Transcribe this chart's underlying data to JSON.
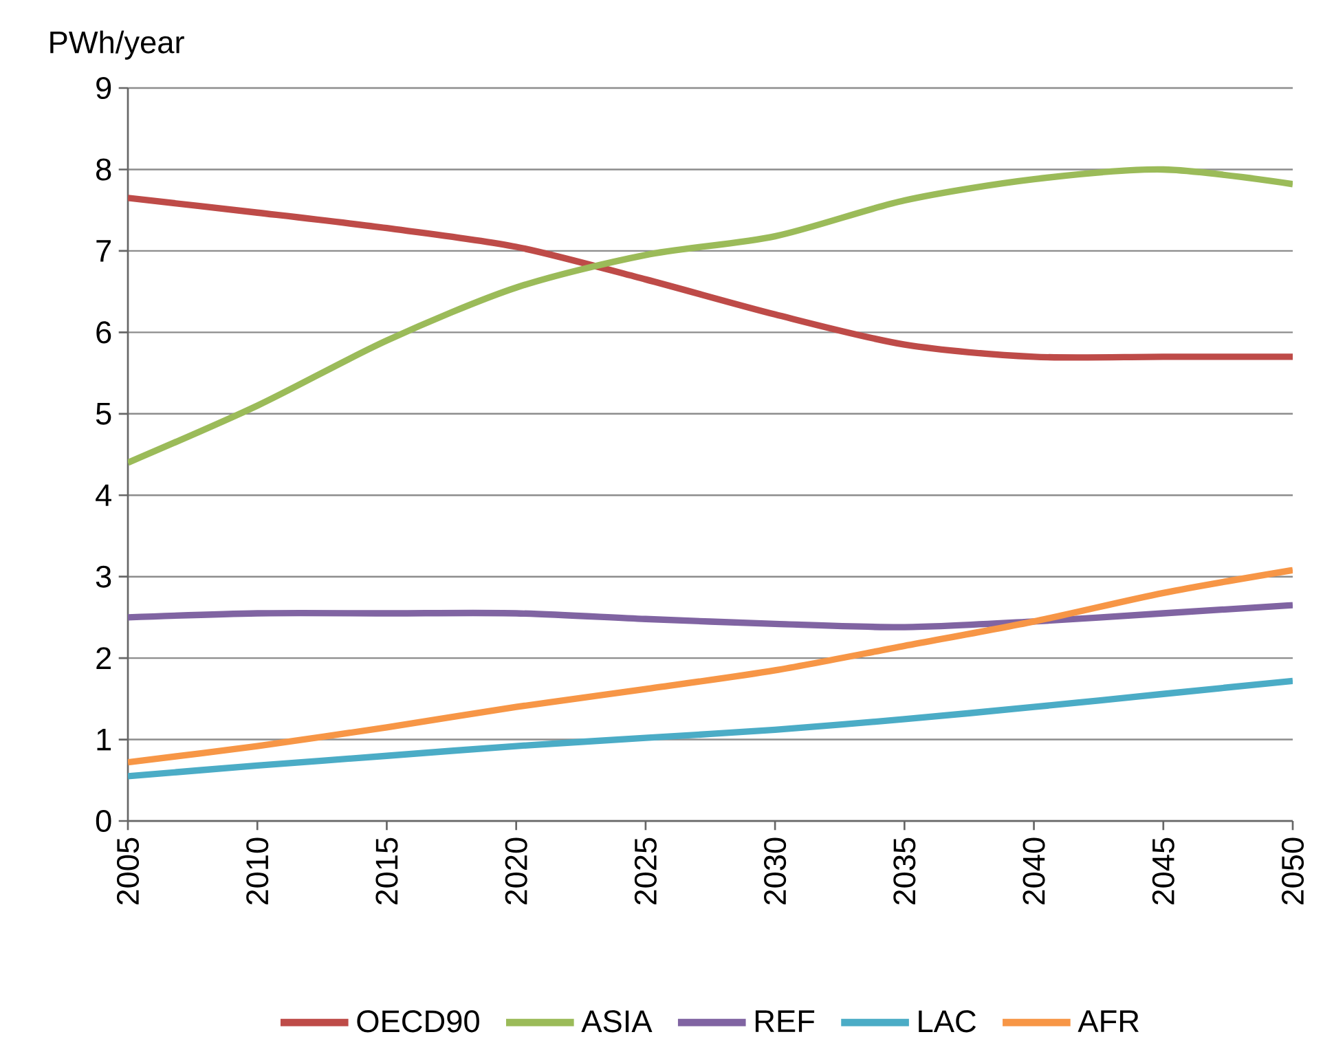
{
  "chart_data": {
    "type": "line",
    "ylabel": "PWh/year",
    "x": [
      2005,
      2010,
      2015,
      2020,
      2025,
      2030,
      2035,
      2040,
      2045,
      2050
    ],
    "xlim": [
      2005,
      2050
    ],
    "xticks": [
      2005,
      2010,
      2015,
      2020,
      2025,
      2030,
      2035,
      2040,
      2045,
      2050
    ],
    "ylim": [
      0,
      9
    ],
    "yticks": [
      0,
      1,
      2,
      3,
      4,
      5,
      6,
      7,
      8,
      9
    ],
    "grid": "y",
    "legend": "bottom",
    "series": [
      {
        "name": "OECD90",
        "color": "#be4b48",
        "values": [
          7.65,
          7.47,
          7.28,
          7.05,
          6.65,
          6.22,
          5.85,
          5.7,
          5.7,
          5.7
        ]
      },
      {
        "name": "ASIA",
        "color": "#9bbb59",
        "values": [
          4.4,
          5.1,
          5.9,
          6.55,
          6.95,
          7.18,
          7.62,
          7.88,
          8.0,
          7.82
        ]
      },
      {
        "name": "REF",
        "color": "#8064a2",
        "values": [
          2.5,
          2.55,
          2.55,
          2.55,
          2.48,
          2.42,
          2.38,
          2.45,
          2.55,
          2.65
        ]
      },
      {
        "name": "LAC",
        "color": "#4bacc6",
        "values": [
          0.55,
          0.68,
          0.8,
          0.92,
          1.02,
          1.12,
          1.25,
          1.4,
          1.56,
          1.72
        ]
      },
      {
        "name": "AFR",
        "color": "#f79646",
        "values": [
          0.72,
          0.92,
          1.15,
          1.4,
          1.62,
          1.85,
          2.15,
          2.45,
          2.8,
          3.08
        ]
      }
    ]
  }
}
